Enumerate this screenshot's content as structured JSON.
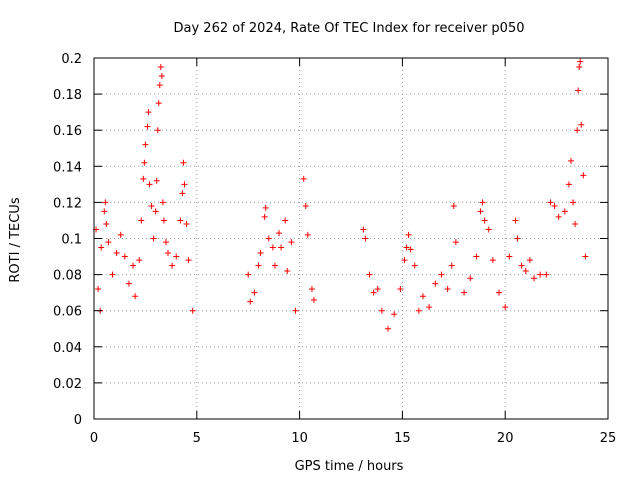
{
  "chart_data": {
    "type": "scatter",
    "title": "Day 262 of 2024, Rate Of TEC Index for receiver p050",
    "xlabel": "GPS time / hours",
    "ylabel": "ROTI / TECUs",
    "xlim": [
      0,
      25
    ],
    "ylim": [
      0,
      0.2
    ],
    "xticks": [
      0,
      5,
      10,
      15,
      20,
      25
    ],
    "xtick_labels": [
      "0",
      "5",
      "10",
      "15",
      "20",
      "25"
    ],
    "yticks": [
      0,
      0.02,
      0.04,
      0.06,
      0.08,
      0.1,
      0.12,
      0.14,
      0.16,
      0.18,
      0.2
    ],
    "ytick_labels": [
      "0",
      "0.02",
      "0.04",
      "0.06",
      "0.08",
      "0.1",
      "0.12",
      "0.14",
      "0.16",
      "0.18",
      "0.2"
    ],
    "grid": true,
    "marker": "plus",
    "marker_color": "#ff0000",
    "series": [
      {
        "points": [
          [
            0.1,
            0.105
          ],
          [
            0.2,
            0.072
          ],
          [
            0.3,
            0.06
          ],
          [
            0.35,
            0.095
          ],
          [
            0.5,
            0.115
          ],
          [
            0.55,
            0.12
          ],
          [
            0.6,
            0.108
          ],
          [
            0.7,
            0.098
          ],
          [
            0.9,
            0.08
          ],
          [
            1.1,
            0.092
          ],
          [
            1.3,
            0.102
          ],
          [
            1.5,
            0.09
          ],
          [
            1.7,
            0.075
          ],
          [
            1.9,
            0.085
          ],
          [
            2.0,
            0.068
          ],
          [
            2.2,
            0.088
          ],
          [
            2.3,
            0.11
          ],
          [
            2.4,
            0.133
          ],
          [
            2.45,
            0.142
          ],
          [
            2.5,
            0.152
          ],
          [
            2.6,
            0.162
          ],
          [
            2.65,
            0.17
          ],
          [
            2.7,
            0.13
          ],
          [
            2.8,
            0.118
          ],
          [
            2.9,
            0.1
          ],
          [
            3.0,
            0.115
          ],
          [
            3.05,
            0.132
          ],
          [
            3.1,
            0.16
          ],
          [
            3.15,
            0.175
          ],
          [
            3.2,
            0.185
          ],
          [
            3.25,
            0.195
          ],
          [
            3.3,
            0.19
          ],
          [
            3.35,
            0.12
          ],
          [
            3.4,
            0.11
          ],
          [
            3.5,
            0.098
          ],
          [
            3.6,
            0.092
          ],
          [
            3.8,
            0.085
          ],
          [
            4.0,
            0.09
          ],
          [
            4.2,
            0.11
          ],
          [
            4.3,
            0.125
          ],
          [
            4.35,
            0.142
          ],
          [
            4.4,
            0.13
          ],
          [
            4.5,
            0.108
          ],
          [
            4.6,
            0.088
          ],
          [
            4.8,
            0.06
          ],
          [
            7.5,
            0.08
          ],
          [
            7.6,
            0.065
          ],
          [
            7.8,
            0.07
          ],
          [
            8.0,
            0.085
          ],
          [
            8.1,
            0.092
          ],
          [
            8.3,
            0.112
          ],
          [
            8.35,
            0.117
          ],
          [
            8.5,
            0.1
          ],
          [
            8.7,
            0.095
          ],
          [
            8.8,
            0.085
          ],
          [
            9.0,
            0.103
          ],
          [
            9.1,
            0.095
          ],
          [
            9.3,
            0.11
          ],
          [
            9.4,
            0.082
          ],
          [
            9.6,
            0.098
          ],
          [
            9.8,
            0.06
          ],
          [
            10.2,
            0.133
          ],
          [
            10.3,
            0.118
          ],
          [
            10.4,
            0.102
          ],
          [
            10.6,
            0.072
          ],
          [
            10.7,
            0.066
          ],
          [
            13.1,
            0.105
          ],
          [
            13.2,
            0.1
          ],
          [
            13.4,
            0.08
          ],
          [
            13.6,
            0.07
          ],
          [
            13.8,
            0.072
          ],
          [
            14.0,
            0.06
          ],
          [
            14.3,
            0.05
          ],
          [
            14.6,
            0.058
          ],
          [
            14.9,
            0.072
          ],
          [
            15.1,
            0.088
          ],
          [
            15.2,
            0.095
          ],
          [
            15.3,
            0.102
          ],
          [
            15.4,
            0.094
          ],
          [
            15.6,
            0.085
          ],
          [
            15.8,
            0.06
          ],
          [
            16.0,
            0.068
          ],
          [
            16.3,
            0.062
          ],
          [
            16.6,
            0.075
          ],
          [
            16.9,
            0.08
          ],
          [
            17.2,
            0.072
          ],
          [
            17.4,
            0.085
          ],
          [
            17.6,
            0.098
          ],
          [
            17.5,
            0.118
          ],
          [
            18.0,
            0.07
          ],
          [
            18.3,
            0.078
          ],
          [
            18.6,
            0.09
          ],
          [
            18.8,
            0.115
          ],
          [
            18.9,
            0.12
          ],
          [
            19.0,
            0.11
          ],
          [
            19.2,
            0.105
          ],
          [
            19.4,
            0.088
          ],
          [
            19.7,
            0.07
          ],
          [
            20.0,
            0.062
          ],
          [
            20.2,
            0.09
          ],
          [
            20.5,
            0.11
          ],
          [
            20.6,
            0.1
          ],
          [
            20.8,
            0.085
          ],
          [
            21.0,
            0.082
          ],
          [
            21.2,
            0.088
          ],
          [
            21.4,
            0.078
          ],
          [
            21.7,
            0.08
          ],
          [
            22.0,
            0.08
          ],
          [
            22.2,
            0.12
          ],
          [
            22.4,
            0.118
          ],
          [
            22.6,
            0.112
          ],
          [
            22.9,
            0.115
          ],
          [
            23.1,
            0.13
          ],
          [
            23.2,
            0.143
          ],
          [
            23.3,
            0.12
          ],
          [
            23.4,
            0.108
          ],
          [
            23.5,
            0.16
          ],
          [
            23.55,
            0.182
          ],
          [
            23.6,
            0.195
          ],
          [
            23.65,
            0.198
          ],
          [
            23.7,
            0.163
          ],
          [
            23.8,
            0.135
          ],
          [
            23.9,
            0.09
          ]
        ]
      }
    ]
  }
}
